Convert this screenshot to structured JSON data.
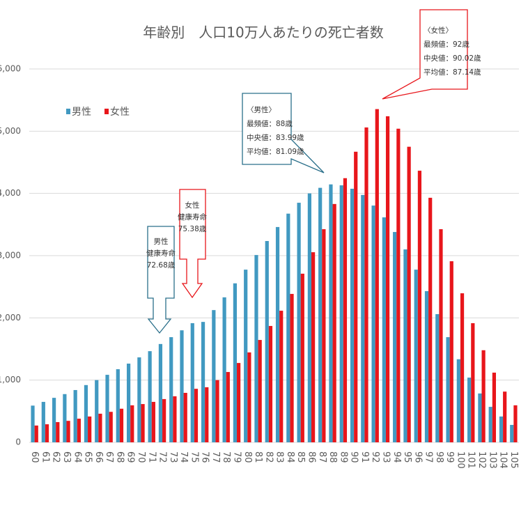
{
  "chart_data": {
    "type": "bar",
    "title": "年齢別　人口10万人あたりの死亡者数",
    "categories": [
      "60",
      "61",
      "62",
      "63",
      "64",
      "65",
      "66",
      "67",
      "68",
      "69",
      "70",
      "71",
      "72",
      "73",
      "74",
      "75",
      "76",
      "77",
      "78",
      "79",
      "80",
      "81",
      "82",
      "83",
      "84",
      "85",
      "86",
      "87",
      "88",
      "89",
      "90",
      "91",
      "92",
      "93",
      "94",
      "95",
      "96",
      "97",
      "98",
      "99",
      "100",
      "101",
      "102",
      "103",
      "104",
      "105"
    ],
    "series": [
      {
        "name": "男性",
        "color": "#4199c1",
        "values": [
          590,
          650,
          715,
          775,
          840,
          920,
          1000,
          1085,
          1175,
          1265,
          1365,
          1465,
          1580,
          1690,
          1800,
          1915,
          1935,
          2125,
          2330,
          2555,
          2775,
          3010,
          3235,
          3460,
          3675,
          3850,
          4000,
          4090,
          4145,
          4130,
          4075,
          3975,
          3805,
          3615,
          3380,
          3100,
          2775,
          2430,
          2060,
          1690,
          1335,
          1040,
          785,
          570,
          415,
          280
        ]
      },
      {
        "name": "女性",
        "color": "#e8161b",
        "values": [
          270,
          290,
          325,
          345,
          380,
          415,
          460,
          490,
          540,
          595,
          615,
          650,
          695,
          740,
          795,
          860,
          885,
          1000,
          1130,
          1275,
          1445,
          1645,
          1870,
          2115,
          2385,
          2710,
          3055,
          3425,
          3830,
          4245,
          4670,
          5060,
          5355,
          5240,
          5040,
          4750,
          4365,
          3930,
          3425,
          2910,
          2395,
          1915,
          1480,
          1120,
          815,
          595
        ]
      }
    ],
    "ylim": [
      0,
      6000
    ],
    "yticks": [
      0,
      {
        "value": 1000,
        "label": "1,000"
      },
      {
        "value": 2000,
        "label": "2,000"
      },
      {
        "value": 3000,
        "label": "3,000"
      },
      {
        "value": 4000,
        "label": "4,000"
      },
      {
        "value": 5000,
        "label": "5,000"
      },
      {
        "value": 6000,
        "label": "6,000"
      }
    ],
    "grid": true,
    "legend": "upper left",
    "annotations": [
      {
        "lines": [
          "〈男性〉",
          "最頻値：88歳",
          "中央値：83.99歳",
          "平均値：81.09歳"
        ]
      },
      {
        "lines": [
          "〈女性〉",
          "最頻値：92歳",
          "中央値：90.02歳",
          "平均値：87.14歳"
        ]
      },
      {
        "lines": [
          "男性",
          "健康寿命",
          "72.68歳"
        ]
      },
      {
        "lines": [
          "女性",
          "健康寿命",
          "75.38歳"
        ]
      }
    ]
  }
}
